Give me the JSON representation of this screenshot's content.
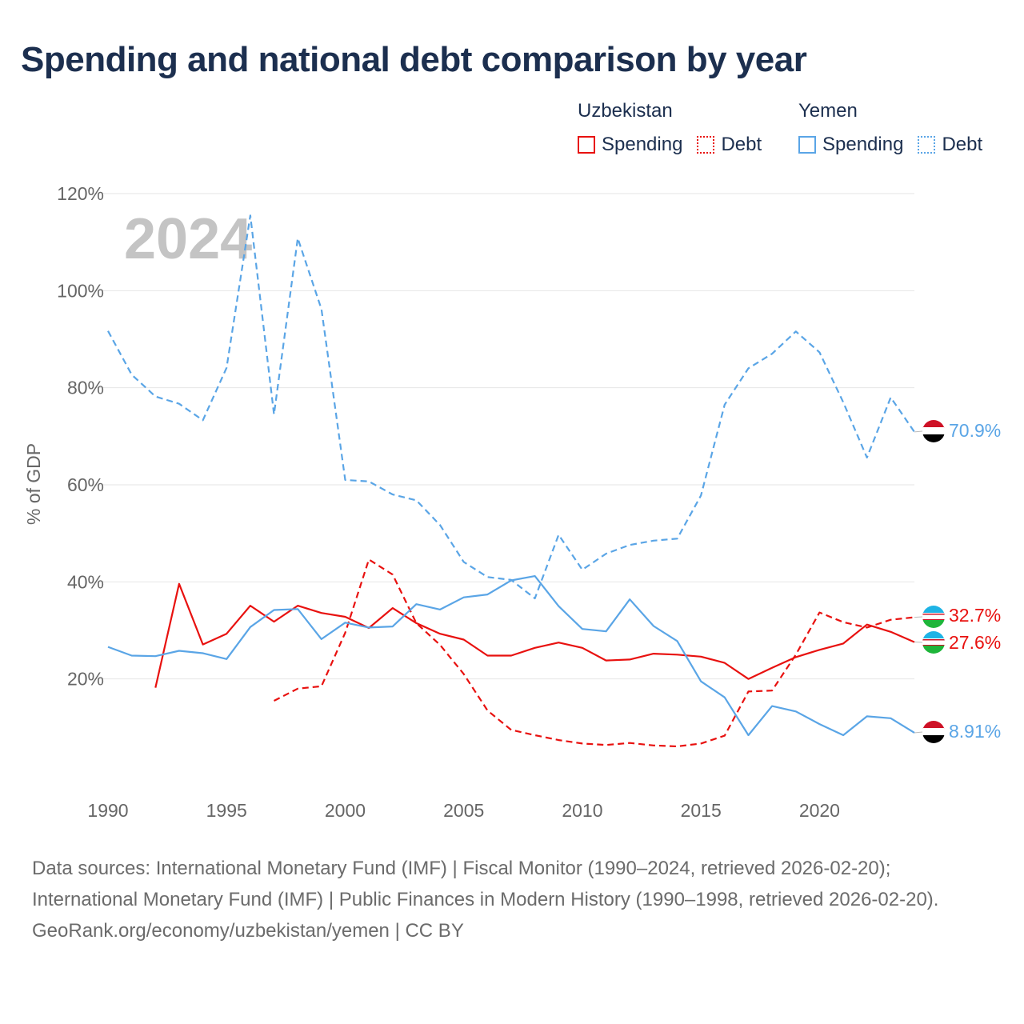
{
  "title": "Spending and national debt comparison by year",
  "legend": {
    "groups": [
      {
        "name": "Uzbekistan",
        "items": [
          {
            "label": "Spending"
          },
          {
            "label": "Debt"
          }
        ]
      },
      {
        "name": "Yemen",
        "items": [
          {
            "label": "Spending"
          },
          {
            "label": "Debt"
          }
        ]
      }
    ]
  },
  "colors": {
    "uzbekistan": "#e8110f",
    "yemen": "#5aa5e6",
    "grid": "#e6e6e6",
    "axis_text": "#666666",
    "year_watermark": "#c4c4c4"
  },
  "chart_data": {
    "type": "line",
    "title": "Spending and national debt comparison by year",
    "ylabel": "% of GDP",
    "xlabel": "",
    "year_label": "2024",
    "xlim": [
      1990,
      2024
    ],
    "ylim": [
      0,
      120
    ],
    "x_ticks": [
      1990,
      1995,
      2000,
      2005,
      2010,
      2015,
      2020
    ],
    "y_ticks": [
      {
        "value": 20,
        "label": "20%"
      },
      {
        "value": 40,
        "label": "40%"
      },
      {
        "value": 60,
        "label": "60%"
      },
      {
        "value": 80,
        "label": "80%"
      },
      {
        "value": 100,
        "label": "100%"
      },
      {
        "value": 120,
        "label": "120%"
      }
    ],
    "series": [
      {
        "name": "Uzbekistan Spending",
        "country": "Uzbekistan",
        "metric": "Spending",
        "style": "solid",
        "x": [
          1992,
          1993,
          1994,
          1995,
          1996,
          1997,
          1998,
          1999,
          2000,
          2001,
          2002,
          2003,
          2004,
          2005,
          2006,
          2007,
          2008,
          2009,
          2010,
          2011,
          2012,
          2013,
          2014,
          2015,
          2016,
          2017,
          2018,
          2019,
          2020,
          2021,
          2022,
          2023,
          2024
        ],
        "values": [
          18.2,
          39.6,
          27.1,
          29.3,
          35.1,
          31.8,
          35.1,
          33.6,
          32.8,
          30.5,
          34.6,
          31.5,
          29.3,
          28.1,
          24.8,
          24.8,
          26.4,
          27.5,
          26.4,
          23.8,
          24.0,
          25.2,
          25.0,
          24.6,
          23.3,
          20.0,
          22.3,
          24.5,
          26.0,
          27.3,
          31.2,
          29.7,
          27.6
        ],
        "end_label": "27.6%"
      },
      {
        "name": "Uzbekistan Debt",
        "country": "Uzbekistan",
        "metric": "Debt",
        "style": "dashed",
        "x": [
          1997,
          1998,
          1999,
          2000,
          2001,
          2002,
          2003,
          2004,
          2005,
          2006,
          2007,
          2008,
          2009,
          2010,
          2011,
          2012,
          2013,
          2014,
          2015,
          2016,
          2017,
          2018,
          2019,
          2020,
          2021,
          2022,
          2023,
          2024
        ],
        "values": [
          15.5,
          18.0,
          18.5,
          29.5,
          44.6,
          41.5,
          31.5,
          27.0,
          21.0,
          13.5,
          9.5,
          8.4,
          7.4,
          6.7,
          6.4,
          6.8,
          6.3,
          6.1,
          6.7,
          8.3,
          17.4,
          17.6,
          25.0,
          33.7,
          31.7,
          30.6,
          32.2,
          32.7
        ],
        "end_label": "32.7%"
      },
      {
        "name": "Yemen Spending",
        "country": "Yemen",
        "metric": "Spending",
        "style": "solid",
        "x": [
          1990,
          1991,
          1992,
          1993,
          1994,
          1995,
          1996,
          1997,
          1998,
          1999,
          2000,
          2001,
          2002,
          2003,
          2004,
          2005,
          2006,
          2007,
          2008,
          2009,
          2010,
          2011,
          2012,
          2013,
          2014,
          2015,
          2016,
          2017,
          2018,
          2019,
          2020,
          2021,
          2022,
          2023,
          2024
        ],
        "values": [
          26.6,
          24.8,
          24.7,
          25.8,
          25.3,
          24.1,
          30.7,
          34.2,
          34.4,
          28.2,
          31.6,
          30.6,
          30.8,
          35.4,
          34.3,
          36.8,
          37.4,
          40.3,
          41.2,
          35.0,
          30.3,
          29.8,
          36.4,
          30.9,
          27.8,
          19.5,
          16.2,
          8.4,
          14.4,
          13.3,
          10.7,
          8.4,
          12.3,
          11.9,
          8.91
        ],
        "end_label": "8.91%"
      },
      {
        "name": "Yemen Debt",
        "country": "Yemen",
        "metric": "Debt",
        "style": "dashed",
        "x": [
          1990,
          1991,
          1992,
          1993,
          1994,
          1995,
          1996,
          1997,
          1998,
          1999,
          2000,
          2001,
          2002,
          2003,
          2004,
          2005,
          2006,
          2007,
          2008,
          2009,
          2010,
          2011,
          2012,
          2013,
          2014,
          2015,
          2016,
          2017,
          2018,
          2019,
          2020,
          2021,
          2022,
          2023,
          2024
        ],
        "values": [
          91.7,
          82.7,
          78.2,
          76.7,
          73.3,
          84.1,
          115.5,
          74.5,
          110.8,
          96.2,
          61.0,
          60.7,
          58.0,
          56.8,
          51.7,
          44.1,
          41.0,
          40.4,
          36.6,
          49.7,
          42.5,
          45.8,
          47.6,
          48.5,
          48.9,
          57.8,
          76.5,
          84.0,
          87.0,
          91.6,
          87.3,
          77.0,
          65.6,
          78.0,
          70.9
        ],
        "end_label": "70.9%"
      }
    ]
  },
  "footer": {
    "sources": "Data sources: International Monetary Fund (IMF) | Fiscal Monitor (1990–2024, retrieved 2026-02-20); International Monetary Fund (IMF) | Public Finances in Modern History (1990–1998, retrieved 2026-02-20).",
    "attribution": "GeoRank.org/economy/uzbekistan/yemen | CC BY"
  }
}
